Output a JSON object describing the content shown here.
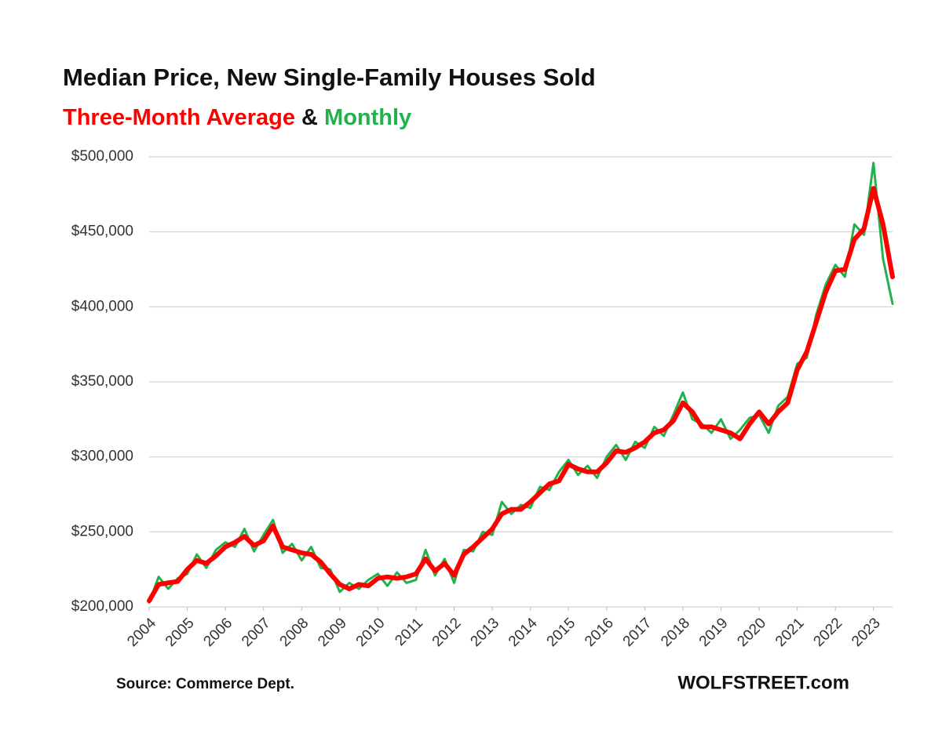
{
  "chart_data": {
    "type": "line",
    "title": "Median Price, New Single-Family Houses Sold",
    "legend_separator": "&",
    "source": "Source: Commerce Dept.",
    "credit": "WOLFSTREET.com",
    "x": [
      2004,
      2004.25,
      2004.5,
      2004.75,
      2005,
      2005.25,
      2005.5,
      2005.75,
      2006,
      2006.25,
      2006.5,
      2006.75,
      2007,
      2007.25,
      2007.5,
      2007.75,
      2008,
      2008.25,
      2008.5,
      2008.75,
      2009,
      2009.25,
      2009.5,
      2009.75,
      2010,
      2010.25,
      2010.5,
      2010.75,
      2011,
      2011.25,
      2011.5,
      2011.75,
      2012,
      2012.25,
      2012.5,
      2012.75,
      2013,
      2013.25,
      2013.5,
      2013.75,
      2014,
      2014.25,
      2014.5,
      2014.75,
      2015,
      2015.25,
      2015.5,
      2015.75,
      2016,
      2016.25,
      2016.5,
      2016.75,
      2017,
      2017.25,
      2017.5,
      2017.75,
      2018,
      2018.25,
      2018.5,
      2018.75,
      2019,
      2019.25,
      2019.5,
      2019.75,
      2020,
      2020.25,
      2020.5,
      2020.75,
      2021,
      2021.25,
      2021.5,
      2021.75,
      2022,
      2022.25,
      2022.5,
      2022.75,
      2023,
      2023.25,
      2023.5
    ],
    "series": [
      {
        "name": "Monthly",
        "color": "#22b14c",
        "width": 3,
        "values": [
          203000,
          220000,
          212000,
          219000,
          222000,
          235000,
          226000,
          238000,
          243000,
          240000,
          252000,
          237000,
          248000,
          258000,
          236000,
          242000,
          231000,
          240000,
          226000,
          225000,
          210000,
          216000,
          212000,
          218000,
          222000,
          214000,
          223000,
          216000,
          218000,
          238000,
          221000,
          232000,
          216000,
          238000,
          237000,
          250000,
          248000,
          270000,
          262000,
          268000,
          266000,
          280000,
          278000,
          290000,
          298000,
          288000,
          294000,
          286000,
          300000,
          308000,
          298000,
          310000,
          306000,
          320000,
          314000,
          328000,
          343000,
          325000,
          322000,
          316000,
          325000,
          312000,
          318000,
          326000,
          328000,
          316000,
          334000,
          340000,
          362000,
          366000,
          395000,
          415000,
          428000,
          420000,
          455000,
          448000,
          496000,
          432000,
          402000
        ]
      },
      {
        "name": "Three-Month Average",
        "color": "#ff0000",
        "width": 6,
        "values": [
          204000,
          215000,
          216000,
          217000,
          225000,
          231000,
          229000,
          234000,
          240000,
          243000,
          247000,
          241000,
          244000,
          254000,
          240000,
          238000,
          236000,
          235000,
          230000,
          222000,
          215000,
          212000,
          215000,
          214000,
          219000,
          220000,
          219000,
          220000,
          222000,
          232000,
          224000,
          229000,
          221000,
          235000,
          240000,
          246000,
          252000,
          262000,
          265000,
          265000,
          270000,
          276000,
          282000,
          284000,
          295000,
          292000,
          290000,
          290000,
          296000,
          304000,
          303000,
          306000,
          310000,
          316000,
          318000,
          324000,
          336000,
          330000,
          320000,
          320000,
          318000,
          316000,
          312000,
          322000,
          330000,
          322000,
          330000,
          336000,
          358000,
          370000,
          390000,
          410000,
          424000,
          425000,
          445000,
          452000,
          479000,
          455000,
          420000
        ]
      }
    ],
    "xlim": [
      2004,
      2023.5
    ],
    "xticks": [
      2004,
      2005,
      2006,
      2007,
      2008,
      2009,
      2010,
      2011,
      2012,
      2013,
      2014,
      2015,
      2016,
      2017,
      2018,
      2019,
      2020,
      2021,
      2022,
      2023
    ],
    "ylim": [
      200000,
      500000
    ],
    "yticks": [
      {
        "value": 200000,
        "label": "$200,000"
      },
      {
        "value": 250000,
        "label": "$250,000"
      },
      {
        "value": 300000,
        "label": "$300,000"
      },
      {
        "value": 350000,
        "label": "$350,000"
      },
      {
        "value": 400000,
        "label": "$400,000"
      },
      {
        "value": 450000,
        "label": "$450,000"
      },
      {
        "value": 500000,
        "label": "$500,000"
      }
    ],
    "grid": true
  }
}
